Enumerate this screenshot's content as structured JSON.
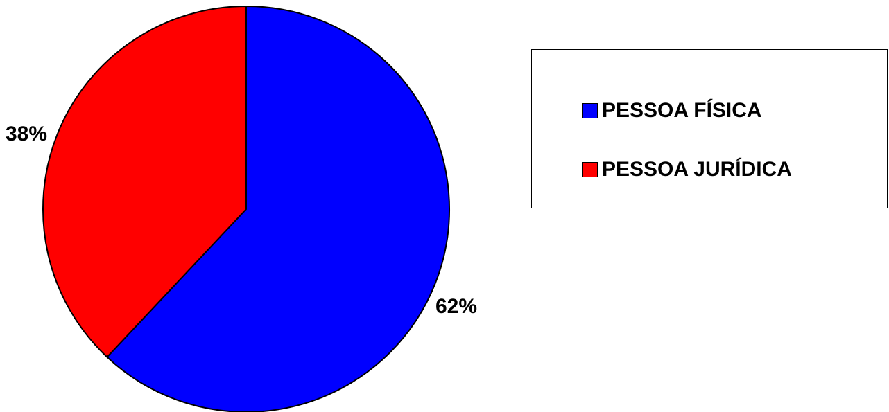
{
  "chart_data": {
    "type": "pie",
    "title": "",
    "categories": [
      "PESSOA FÍSICA",
      "PESSOA JURÍDICA"
    ],
    "values": [
      62,
      38
    ],
    "colors": [
      "#0000ff",
      "#ff0000"
    ],
    "data_labels": [
      "62%",
      "38%"
    ],
    "legend": {
      "placement": "right",
      "entries": [
        "PESSOA FÍSICA",
        "PESSOA JURÍDICA"
      ]
    }
  }
}
